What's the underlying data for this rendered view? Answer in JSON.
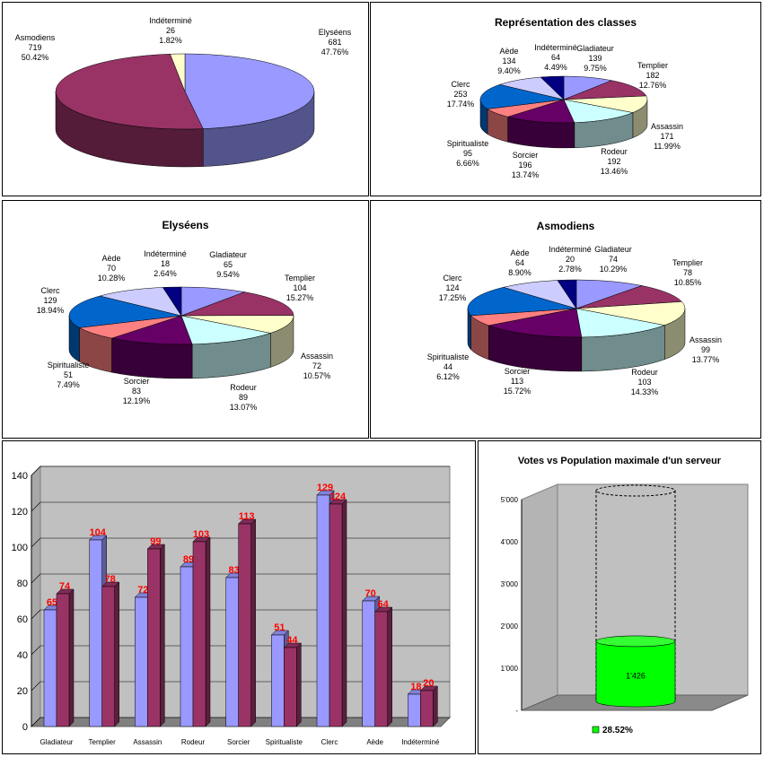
{
  "chart_data": [
    {
      "id": "faction",
      "type": "pie",
      "title": "",
      "slices": [
        {
          "label": "Elyséens",
          "value": 681,
          "percent": "47.76%",
          "color": "#9999ff"
        },
        {
          "label": "Asmodiens",
          "value": 719,
          "percent": "50.42%",
          "color": "#993366"
        },
        {
          "label": "Indéterminé",
          "value": 26,
          "percent": "1.82%",
          "color": "#ffffcc"
        }
      ]
    },
    {
      "id": "classes",
      "type": "pie",
      "title": "Représentation des classes",
      "slices": [
        {
          "label": "Gladiateur",
          "value": 139,
          "percent": "9.75%",
          "color": "#9999ff"
        },
        {
          "label": "Templier",
          "value": 182,
          "percent": "12.76%",
          "color": "#993366"
        },
        {
          "label": "Assassin",
          "value": 171,
          "percent": "11.99%",
          "color": "#ffffcc"
        },
        {
          "label": "Rodeur",
          "value": 192,
          "percent": "13.46%",
          "color": "#ccffff"
        },
        {
          "label": "Sorcier",
          "value": 196,
          "percent": "13.74%",
          "color": "#660066"
        },
        {
          "label": "Spiritualiste",
          "value": 95,
          "percent": "6.66%",
          "color": "#ff8080"
        },
        {
          "label": "Clerc",
          "value": 253,
          "percent": "17.74%",
          "color": "#0066cc"
        },
        {
          "label": "Aède",
          "value": 134,
          "percent": "9.40%",
          "color": "#ccccff"
        },
        {
          "label": "Indéterminé",
          "value": 64,
          "percent": "4.49%",
          "color": "#000080"
        }
      ]
    },
    {
      "id": "elyseens",
      "type": "pie",
      "title": "Elyséens",
      "slices": [
        {
          "label": "Gladiateur",
          "value": 65,
          "percent": "9.54%",
          "color": "#9999ff"
        },
        {
          "label": "Templier",
          "value": 104,
          "percent": "15.27%",
          "color": "#993366"
        },
        {
          "label": "Assassin",
          "value": 72,
          "percent": "10.57%",
          "color": "#ffffcc"
        },
        {
          "label": "Rodeur",
          "value": 89,
          "percent": "13.07%",
          "color": "#ccffff"
        },
        {
          "label": "Sorcier",
          "value": 83,
          "percent": "12.19%",
          "color": "#660066"
        },
        {
          "label": "Spiritualiste",
          "value": 51,
          "percent": "7.49%",
          "color": "#ff8080"
        },
        {
          "label": "Clerc",
          "value": 129,
          "percent": "18.94%",
          "color": "#0066cc"
        },
        {
          "label": "Aède",
          "value": 70,
          "percent": "10.28%",
          "color": "#ccccff"
        },
        {
          "label": "Indéterminé",
          "value": 18,
          "percent": "2.64%",
          "color": "#000080"
        }
      ]
    },
    {
      "id": "asmodiens",
      "type": "pie",
      "title": "Asmodiens",
      "slices": [
        {
          "label": "Gladiateur",
          "value": 74,
          "percent": "10.29%",
          "color": "#9999ff"
        },
        {
          "label": "Templier",
          "value": 78,
          "percent": "10.85%",
          "color": "#993366"
        },
        {
          "label": "Assassin",
          "value": 99,
          "percent": "13.77%",
          "color": "#ffffcc"
        },
        {
          "label": "Rodeur",
          "value": 103,
          "percent": "14.33%",
          "color": "#ccffff"
        },
        {
          "label": "Sorcier",
          "value": 113,
          "percent": "15.72%",
          "color": "#660066"
        },
        {
          "label": "Spiritualiste",
          "value": 44,
          "percent": "6.12%",
          "color": "#ff8080"
        },
        {
          "label": "Clerc",
          "value": 124,
          "percent": "17.25%",
          "color": "#0066cc"
        },
        {
          "label": "Aède",
          "value": 64,
          "percent": "8.90%",
          "color": "#ccccff"
        },
        {
          "label": "Indéterminé",
          "value": 20,
          "percent": "2.78%",
          "color": "#000080"
        }
      ]
    },
    {
      "id": "bars",
      "type": "bar",
      "title": "",
      "categories": [
        "Gladiateur",
        "Templier",
        "Assassin",
        "Rodeur",
        "Sorcier",
        "Spiritualiste",
        "Clerc",
        "Aède",
        "Indéterminé"
      ],
      "series": [
        {
          "values": [
            65,
            104,
            72,
            89,
            83,
            51,
            129,
            70,
            18
          ],
          "color": "#9999ff"
        },
        {
          "values": [
            74,
            78,
            99,
            103,
            113,
            44,
            124,
            64,
            20
          ],
          "color": "#993366"
        }
      ],
      "ylim": [
        0,
        140
      ],
      "yticks": [
        0,
        20,
        40,
        60,
        80,
        100,
        120,
        140
      ],
      "grid": true,
      "data_label_color": "#ff0000"
    },
    {
      "id": "votes",
      "type": "bar",
      "title": "Votes vs Population maximale d'un serveur",
      "value": 1426,
      "value_label": "1'426",
      "max": 5000,
      "ylim": [
        0,
        5000
      ],
      "yticks": [
        "-",
        "1'000",
        "2'000",
        "3'000",
        "4'000",
        "5'000"
      ],
      "legend": "28.52%",
      "legend_position": "bottom",
      "color": "#00ff00"
    }
  ]
}
